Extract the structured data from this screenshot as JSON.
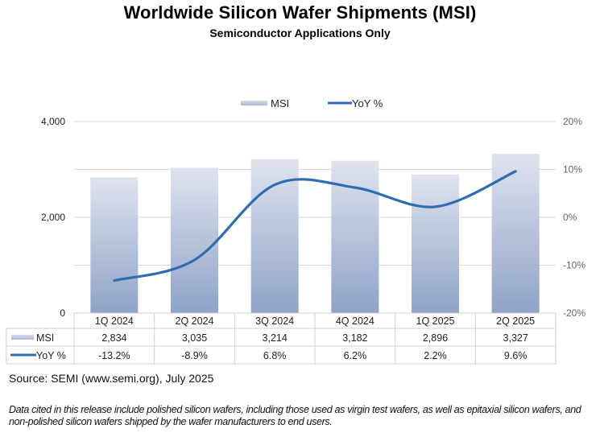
{
  "chart_data": {
    "type": "bar",
    "title": "Worldwide Silicon Wafer Shipments (MSI)",
    "subtitle": "Semiconductor Applications Only",
    "categories": [
      "1Q 2024",
      "2Q 2024",
      "3Q 2024",
      "4Q 2024",
      "1Q 2025",
      "2Q 2025"
    ],
    "series": [
      {
        "name": "MSI",
        "type": "bar",
        "axis": "left",
        "values": [
          2834,
          3035,
          3214,
          3182,
          2896,
          3327
        ],
        "labels": [
          "2,834",
          "3,035",
          "3,214",
          "3,182",
          "2,896",
          "3,327"
        ],
        "color_top": "#dfe3ee",
        "color_bottom": "#8fa3c8"
      },
      {
        "name": "YoY %",
        "type": "line",
        "axis": "right",
        "values": [
          -13.2,
          -8.9,
          6.8,
          6.2,
          2.2,
          9.6
        ],
        "labels": [
          "-13.2%",
          "-8.9%",
          "6.8%",
          "6.2%",
          "2.2%",
          "9.6%"
        ],
        "color": "#2e6db4",
        "smooth": true
      }
    ],
    "left_axis": {
      "ylim": [
        0,
        4000
      ],
      "ticks": [
        0,
        2000,
        4000
      ],
      "tick_labels": [
        "0",
        "2,000",
        "4,000"
      ]
    },
    "right_axis": {
      "ylim": [
        -20,
        20
      ],
      "ticks": [
        -20,
        -10,
        0,
        10,
        20
      ],
      "tick_labels": [
        "-20%",
        "-10%",
        "0%",
        "10%",
        "20%"
      ]
    },
    "grid": true,
    "legend": {
      "position": "top-center",
      "entries": [
        "MSI",
        "YoY %"
      ]
    },
    "data_table": true,
    "xlabel": "",
    "ylabel": ""
  },
  "footer": {
    "source": "Source: SEMI (www.semi.org), July 2025",
    "note": "Data cited in this release include polished silicon wafers, including those used as virgin test wafers, as well as epitaxial silicon wafers, and non-polished silicon wafers shipped by the wafer manufacturers to end users."
  }
}
